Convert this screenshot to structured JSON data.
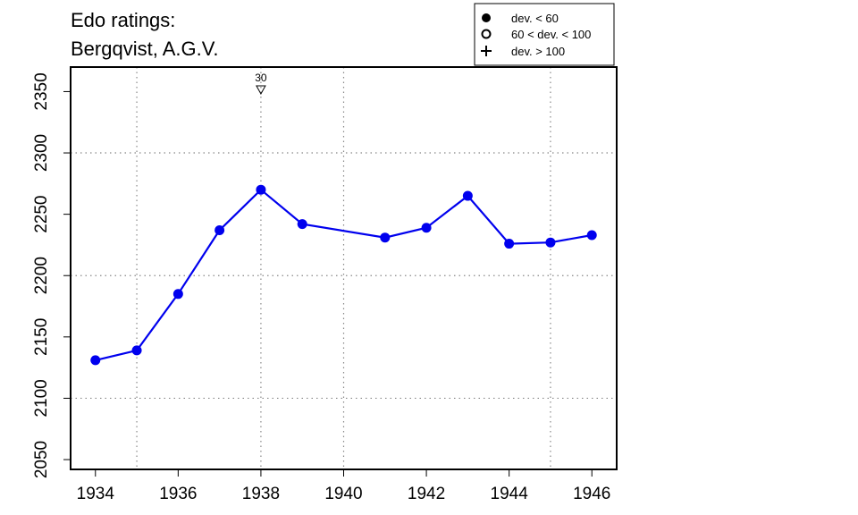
{
  "chart_data": {
    "type": "line",
    "title_lines": [
      "Edo ratings:",
      "Bergqvist, A.G.V."
    ],
    "xlabel": "",
    "ylabel": "",
    "xlim": [
      1933.4,
      1946.6
    ],
    "ylim": [
      2042,
      2370
    ],
    "x_ticks": [
      1934,
      1936,
      1938,
      1940,
      1942,
      1944,
      1946
    ],
    "y_ticks": [
      2050,
      2100,
      2150,
      2200,
      2250,
      2300,
      2350
    ],
    "x_grid": [
      1935,
      1938,
      1940,
      1945
    ],
    "y_grid": [
      2100,
      2200,
      2300
    ],
    "grid": true,
    "series": [
      {
        "color": "#0000ee",
        "points": [
          {
            "x": 1934,
            "y": 2131
          },
          {
            "x": 1935,
            "y": 2139
          },
          {
            "x": 1936,
            "y": 2185
          },
          {
            "x": 1937,
            "y": 2237
          },
          {
            "x": 1938,
            "y": 2270
          },
          {
            "x": 1939,
            "y": 2242
          },
          {
            "x": 1941,
            "y": 2231
          },
          {
            "x": 1942,
            "y": 2239
          },
          {
            "x": 1943,
            "y": 2265
          },
          {
            "x": 1944,
            "y": 2226
          },
          {
            "x": 1945,
            "y": 2227
          },
          {
            "x": 1946,
            "y": 2233
          }
        ]
      }
    ],
    "annotations": [
      {
        "x": 1938,
        "label": "30",
        "marker": "down-triangle"
      }
    ],
    "legend": {
      "placement": "top-right",
      "entries": [
        {
          "label": "dev. < 60",
          "marker": "filled-circle"
        },
        {
          "label": "60 < dev. < 100",
          "marker": "open-circle"
        },
        {
          "label": "dev. > 100",
          "marker": "plus"
        }
      ]
    }
  }
}
